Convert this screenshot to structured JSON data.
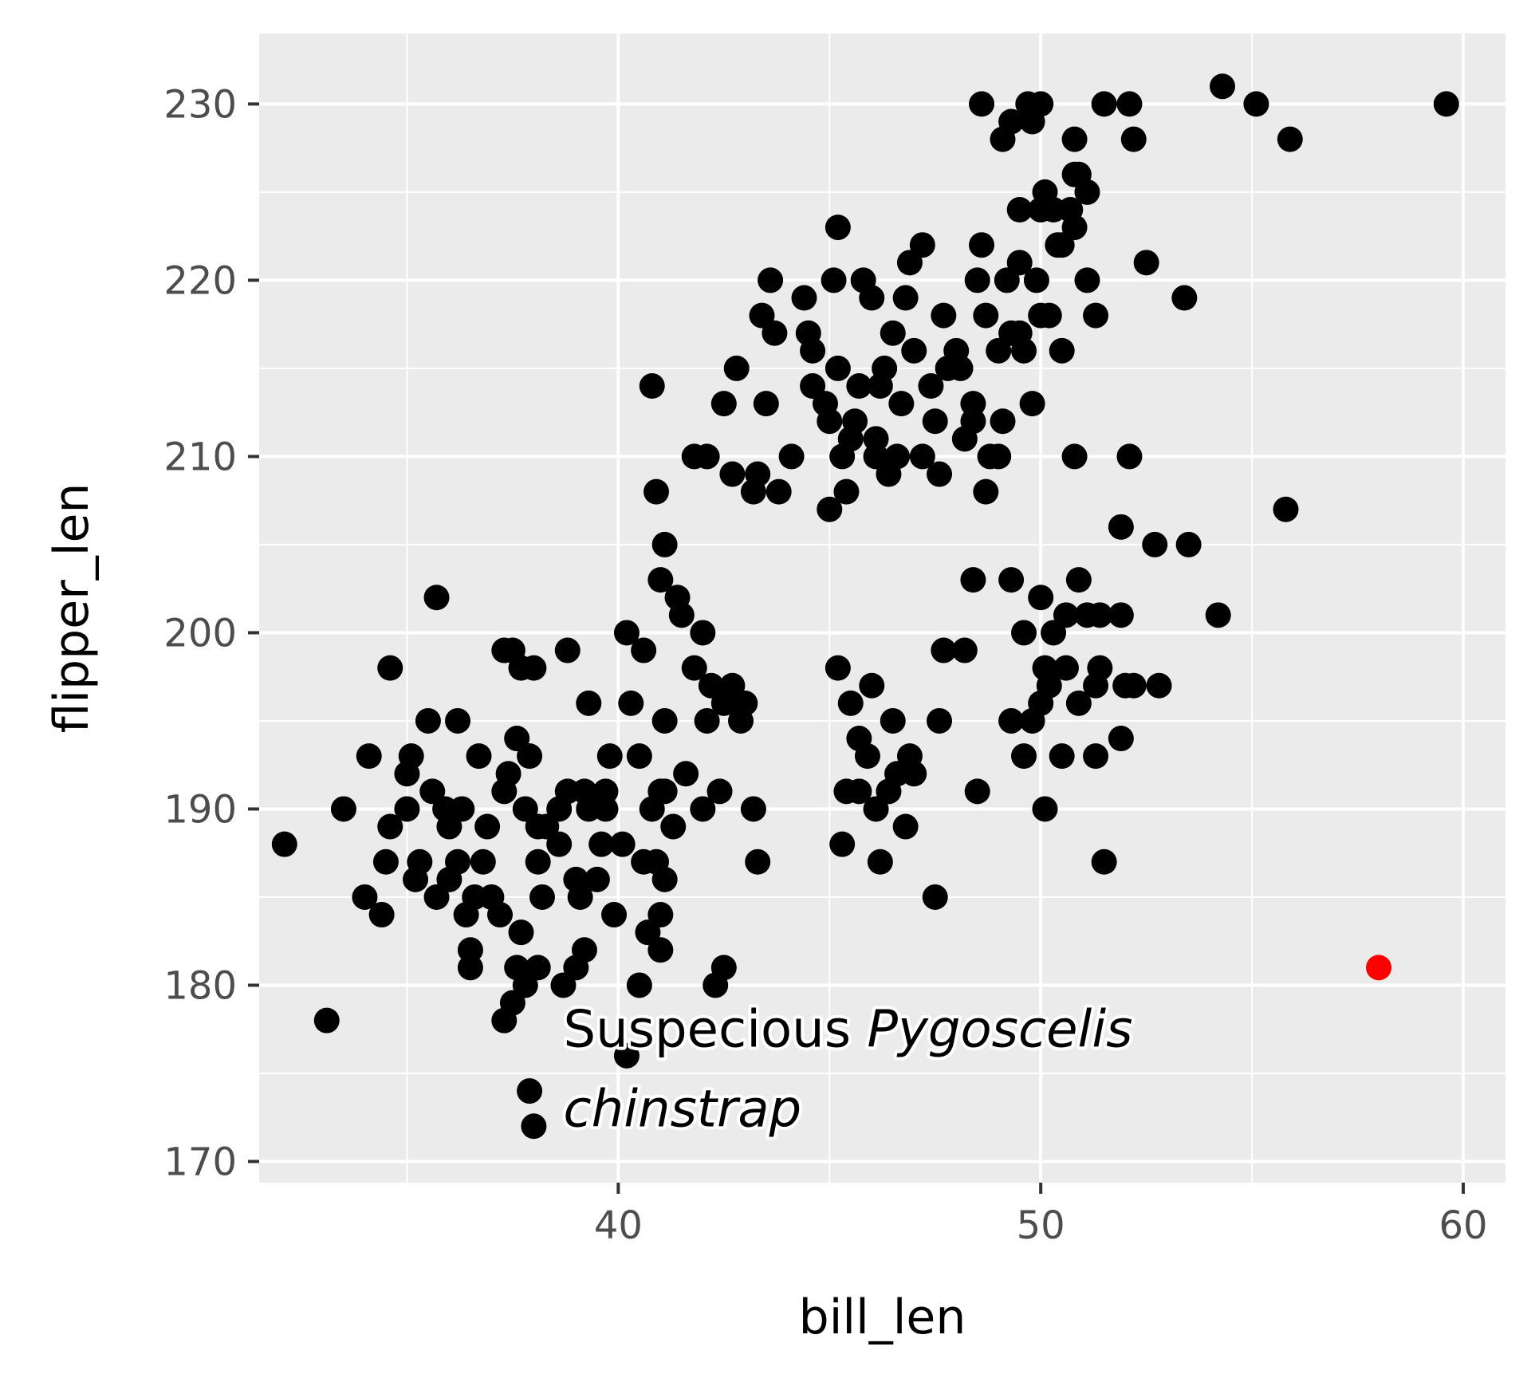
{
  "chart_data": {
    "type": "scatter",
    "xlabel": "bill_len",
    "ylabel": "flipper_len",
    "xlim": [
      31.5,
      61
    ],
    "ylim": [
      168.8,
      234
    ],
    "xticks": [
      40,
      50,
      60
    ],
    "yticks": [
      170,
      180,
      190,
      200,
      210,
      220,
      230
    ],
    "grid": true,
    "background": "#ebebeb",
    "point_color": "#000000",
    "highlight_color": "#ff0000",
    "points": [
      [
        32.1,
        188
      ],
      [
        33.1,
        178
      ],
      [
        33.5,
        190
      ],
      [
        34.0,
        185
      ],
      [
        34.1,
        193
      ],
      [
        34.4,
        184
      ],
      [
        34.5,
        187
      ],
      [
        34.6,
        198
      ],
      [
        34.6,
        189
      ],
      [
        35.0,
        190
      ],
      [
        35.1,
        193
      ],
      [
        35.0,
        192
      ],
      [
        35.2,
        186
      ],
      [
        35.3,
        187
      ],
      [
        35.5,
        195
      ],
      [
        35.7,
        185
      ],
      [
        35.7,
        202
      ],
      [
        35.9,
        190
      ],
      [
        35.6,
        191
      ],
      [
        36.0,
        189
      ],
      [
        36.2,
        195
      ],
      [
        36.0,
        186
      ],
      [
        36.2,
        187
      ],
      [
        36.3,
        190
      ],
      [
        36.4,
        184
      ],
      [
        36.5,
        182
      ],
      [
        36.5,
        181
      ],
      [
        36.6,
        185
      ],
      [
        36.7,
        193
      ],
      [
        36.8,
        187
      ],
      [
        36.9,
        189
      ],
      [
        37.0,
        185
      ],
      [
        37.2,
        184
      ],
      [
        37.3,
        199
      ],
      [
        37.3,
        191
      ],
      [
        37.4,
        192
      ],
      [
        37.5,
        199
      ],
      [
        37.6,
        194
      ],
      [
        37.7,
        198
      ],
      [
        37.8,
        190
      ],
      [
        37.8,
        180
      ],
      [
        37.6,
        181
      ],
      [
        37.9,
        193
      ],
      [
        38.0,
        198
      ],
      [
        38.1,
        181
      ],
      [
        38.1,
        187
      ],
      [
        38.2,
        185
      ],
      [
        38.3,
        189
      ],
      [
        38.6,
        190
      ],
      [
        38.6,
        188
      ],
      [
        38.8,
        199
      ],
      [
        38.8,
        191
      ],
      [
        39.0,
        181
      ],
      [
        39.2,
        191
      ],
      [
        39.0,
        186
      ],
      [
        39.1,
        185
      ],
      [
        39.3,
        190
      ],
      [
        39.5,
        186
      ],
      [
        39.6,
        188
      ],
      [
        39.7,
        191
      ],
      [
        39.8,
        193
      ],
      [
        39.9,
        184
      ],
      [
        40.1,
        188
      ],
      [
        40.2,
        200
      ],
      [
        40.3,
        196
      ],
      [
        40.5,
        193
      ],
      [
        40.6,
        199
      ],
      [
        40.8,
        190
      ],
      [
        40.6,
        187
      ],
      [
        40.9,
        187
      ],
      [
        41.0,
        191
      ],
      [
        41.1,
        186
      ],
      [
        41.3,
        189
      ],
      [
        41.1,
        195
      ],
      [
        41.4,
        202
      ],
      [
        41.5,
        201
      ],
      [
        41.6,
        192
      ],
      [
        41.8,
        198
      ],
      [
        42.0,
        200
      ],
      [
        42.1,
        195
      ],
      [
        42.2,
        197
      ],
      [
        42.4,
        191
      ],
      [
        42.5,
        196
      ],
      [
        42.7,
        197
      ],
      [
        42.9,
        195
      ],
      [
        43.0,
        196
      ],
      [
        43.2,
        190
      ],
      [
        43.3,
        187
      ],
      [
        41.0,
        182
      ],
      [
        41.0,
        184
      ],
      [
        40.7,
        183
      ],
      [
        40.5,
        180
      ],
      [
        40.2,
        176
      ],
      [
        37.9,
        174
      ],
      [
        38.0,
        172
      ],
      [
        37.3,
        178
      ],
      [
        37.5,
        179
      ],
      [
        39.2,
        182
      ],
      [
        38.7,
        180
      ],
      [
        42.5,
        181
      ],
      [
        42.3,
        180
      ],
      [
        37.7,
        183
      ],
      [
        38.1,
        189
      ],
      [
        39.3,
        196
      ],
      [
        39.7,
        190
      ],
      [
        40.8,
        214
      ],
      [
        40.9,
        208
      ],
      [
        41.1,
        205
      ],
      [
        41.0,
        203
      ],
      [
        41.8,
        210
      ],
      [
        42.1,
        210
      ],
      [
        42.5,
        213
      ],
      [
        42.7,
        209
      ],
      [
        42.8,
        215
      ],
      [
        43.2,
        208
      ],
      [
        43.3,
        209
      ],
      [
        43.4,
        218
      ],
      [
        43.5,
        213
      ],
      [
        43.6,
        220
      ],
      [
        43.7,
        217
      ],
      [
        43.8,
        208
      ],
      [
        44.1,
        210
      ],
      [
        44.4,
        219
      ],
      [
        44.5,
        217
      ],
      [
        44.6,
        216
      ],
      [
        44.6,
        214
      ],
      [
        44.9,
        213
      ],
      [
        45.0,
        212
      ],
      [
        45.1,
        220
      ],
      [
        45.2,
        223
      ],
      [
        45.2,
        215
      ],
      [
        45.3,
        210
      ],
      [
        45.4,
        208
      ],
      [
        45.5,
        211
      ],
      [
        45.6,
        212
      ],
      [
        45.7,
        214
      ],
      [
        45.8,
        220
      ],
      [
        46.0,
        219
      ],
      [
        46.1,
        211
      ],
      [
        46.2,
        214
      ],
      [
        46.3,
        215
      ],
      [
        46.4,
        209
      ],
      [
        46.5,
        217
      ],
      [
        46.6,
        210
      ],
      [
        46.7,
        213
      ],
      [
        46.8,
        219
      ],
      [
        46.9,
        221
      ],
      [
        47.0,
        216
      ],
      [
        47.2,
        222
      ],
      [
        47.4,
        214
      ],
      [
        47.5,
        212
      ],
      [
        47.6,
        209
      ],
      [
        47.7,
        218
      ],
      [
        47.8,
        215
      ],
      [
        48.0,
        216
      ],
      [
        48.1,
        215
      ],
      [
        48.4,
        213
      ],
      [
        48.5,
        220
      ],
      [
        48.6,
        222
      ],
      [
        48.7,
        218
      ],
      [
        48.8,
        210
      ],
      [
        49.0,
        216
      ],
      [
        49.1,
        212
      ],
      [
        49.2,
        220
      ],
      [
        49.3,
        217
      ],
      [
        49.5,
        221
      ],
      [
        49.6,
        216
      ],
      [
        49.8,
        213
      ],
      [
        49.9,
        220
      ],
      [
        50.0,
        218
      ],
      [
        50.2,
        218
      ],
      [
        50.4,
        222
      ],
      [
        50.5,
        216
      ],
      [
        50.8,
        223
      ],
      [
        50.8,
        210
      ],
      [
        51.1,
        220
      ],
      [
        51.3,
        218
      ],
      [
        52.1,
        210
      ],
      [
        52.5,
        221
      ],
      [
        53.4,
        219
      ],
      [
        45.0,
        207
      ],
      [
        46.1,
        210
      ],
      [
        48.2,
        211
      ],
      [
        48.7,
        208
      ],
      [
        49.0,
        210
      ],
      [
        47.2,
        210
      ],
      [
        48.6,
        230
      ],
      [
        49.3,
        229
      ],
      [
        49.5,
        224
      ],
      [
        49.7,
        230
      ],
      [
        49.8,
        229
      ],
      [
        50.0,
        230
      ],
      [
        50.1,
        225
      ],
      [
        50.3,
        224
      ],
      [
        50.5,
        222
      ],
      [
        50.8,
        228
      ],
      [
        50.8,
        226
      ],
      [
        51.1,
        225
      ],
      [
        51.5,
        230
      ],
      [
        52.1,
        230
      ],
      [
        52.2,
        228
      ],
      [
        54.3,
        231
      ],
      [
        55.1,
        230
      ],
      [
        55.9,
        228
      ],
      [
        59.6,
        230
      ],
      [
        49.1,
        228
      ],
      [
        50.0,
        224
      ],
      [
        50.7,
        224
      ],
      [
        50.9,
        226
      ],
      [
        48.4,
        203
      ],
      [
        49.3,
        203
      ],
      [
        49.6,
        200
      ],
      [
        50.0,
        202
      ],
      [
        50.3,
        200
      ],
      [
        50.6,
        201
      ],
      [
        50.9,
        203
      ],
      [
        51.1,
        201
      ],
      [
        51.4,
        201
      ],
      [
        51.9,
        201
      ],
      [
        51.3,
        197
      ],
      [
        51.9,
        206
      ],
      [
        52.7,
        205
      ],
      [
        53.5,
        205
      ],
      [
        54.2,
        201
      ],
      [
        55.8,
        207
      ],
      [
        46.4,
        191
      ],
      [
        46.1,
        190
      ],
      [
        45.9,
        193
      ],
      [
        45.7,
        194
      ],
      [
        45.5,
        196
      ],
      [
        46.0,
        197
      ],
      [
        46.5,
        195
      ],
      [
        46.9,
        193
      ],
      [
        47.0,
        192
      ],
      [
        45.2,
        198
      ],
      [
        45.4,
        191
      ],
      [
        45.7,
        191
      ],
      [
        46.2,
        187
      ],
      [
        46.8,
        189
      ],
      [
        47.5,
        185
      ],
      [
        47.7,
        199
      ],
      [
        48.2,
        199
      ],
      [
        47.6,
        195
      ],
      [
        48.5,
        191
      ],
      [
        49.3,
        195
      ],
      [
        49.6,
        193
      ],
      [
        49.8,
        195
      ],
      [
        50.0,
        196
      ],
      [
        50.1,
        198
      ],
      [
        50.2,
        197
      ],
      [
        50.5,
        193
      ],
      [
        50.6,
        198
      ],
      [
        50.9,
        196
      ],
      [
        51.3,
        193
      ],
      [
        51.4,
        198
      ],
      [
        51.5,
        187
      ],
      [
        51.9,
        194
      ],
      [
        52.0,
        197
      ],
      [
        52.2,
        197
      ],
      [
        52.8,
        197
      ],
      [
        50.1,
        190
      ],
      [
        48.4,
        212
      ],
      [
        49.5,
        217
      ],
      [
        45.3,
        188
      ],
      [
        41.1,
        191
      ],
      [
        42.0,
        190
      ],
      [
        46.6,
        192
      ]
    ],
    "highlight": {
      "x": 58.0,
      "y": 181
    },
    "annotation": {
      "line1_regular": "Suspecious ",
      "line1_italic": "Pygoscelis",
      "line2_italic": "chinstrap",
      "x": 38.7,
      "y": 177.5
    }
  }
}
